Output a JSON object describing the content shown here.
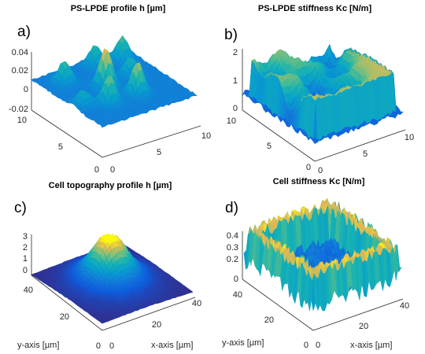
{
  "figure": {
    "panels": [
      {
        "letter": "a)",
        "title": "PS-LPDE profile h [µm]",
        "z_ticks": [
          "0.04",
          "0.02",
          "0",
          "-0.02"
        ],
        "y_ticks": [
          "10",
          "5",
          "0"
        ],
        "x_ticks": [
          "0",
          "5",
          "10"
        ],
        "y_label": "",
        "x_label": ""
      },
      {
        "letter": "b)",
        "title": "PS-LPDE stiffness Kc [N/m]",
        "z_ticks": [
          "2",
          "1",
          "0"
        ],
        "y_ticks": [
          "10",
          "5",
          "0"
        ],
        "x_ticks": [
          "0",
          "5",
          "10"
        ],
        "y_label": "",
        "x_label": ""
      },
      {
        "letter": "c)",
        "title": "Cell topography profile h [µm]",
        "z_ticks": [
          "3",
          "2",
          "1",
          "0"
        ],
        "y_ticks": [
          "40",
          "20",
          "0"
        ],
        "x_ticks": [
          "0",
          "20",
          "40"
        ],
        "y_label": "y-axis [µm]",
        "x_label": "x-axis [µm]"
      },
      {
        "letter": "d)",
        "title": "Cell stiffness Kc [N/m]",
        "z_ticks": [
          "0.4",
          "0.3",
          "0.2",
          "0"
        ],
        "y_ticks": [
          "40",
          "20",
          "0"
        ],
        "x_ticks": [
          "0",
          "20",
          "40"
        ],
        "y_label": "y-axis [µm]",
        "x_label": "x-axis [µm]"
      }
    ]
  },
  "chart_data": [
    {
      "type": "surface",
      "title": "PS-LPDE profile h [µm]",
      "xlim": [
        0,
        10
      ],
      "ylim": [
        0,
        10
      ],
      "zlim": [
        -0.02,
        0.04
      ],
      "z_ticks": [
        -0.02,
        0,
        0.02,
        0.04
      ],
      "colormap": "parula",
      "peaks": [
        {
          "x": 3.0,
          "y": 3.0,
          "h": 0.028
        },
        {
          "x": 6.0,
          "y": 3.0,
          "h": 0.032
        },
        {
          "x": 4.5,
          "y": 5.5,
          "h": 0.04
        },
        {
          "x": 2.0,
          "y": 8.0,
          "h": 0.022
        },
        {
          "x": 7.5,
          "y": 6.0,
          "h": 0.018
        },
        {
          "x": 8.5,
          "y": 8.5,
          "h": 0.024
        },
        {
          "x": 1.0,
          "y": 4.0,
          "h": 0.015
        },
        {
          "x": 6.0,
          "y": 9.0,
          "h": 0.02
        }
      ]
    },
    {
      "type": "surface",
      "title": "PS-LPDE stiffness Kc [N/m]",
      "xlim": [
        0,
        10
      ],
      "ylim": [
        0,
        10
      ],
      "zlim": [
        0,
        2
      ],
      "z_ticks": [
        0,
        1,
        2
      ],
      "colormap": "parula",
      "plateau": 1.7,
      "holes": [
        {
          "x": 3.0,
          "y": 3.0,
          "depth": 1.5
        },
        {
          "x": 6.0,
          "y": 3.0,
          "depth": 1.4
        },
        {
          "x": 4.5,
          "y": 5.5,
          "depth": 1.6
        },
        {
          "x": 2.0,
          "y": 8.0,
          "depth": 1.3
        },
        {
          "x": 7.5,
          "y": 6.0,
          "depth": 1.2
        },
        {
          "x": 8.5,
          "y": 8.5,
          "depth": 1.3
        },
        {
          "x": 1.0,
          "y": 4.0,
          "depth": 1.1
        },
        {
          "x": 6.0,
          "y": 9.0,
          "depth": 1.2
        }
      ]
    },
    {
      "type": "surface",
      "title": "Cell topography profile h [µm]",
      "xlim": [
        0,
        45
      ],
      "ylim": [
        0,
        45
      ],
      "zlim": [
        0,
        3
      ],
      "z_ticks": [
        0,
        1,
        2,
        3
      ],
      "xlabel": "x-axis [µm]",
      "ylabel": "y-axis [µm]",
      "colormap": "parula",
      "peak": {
        "x": 25,
        "y": 27,
        "h": 3.0
      }
    },
    {
      "type": "surface",
      "title": "Cell stiffness Kc [N/m]",
      "xlim": [
        0,
        45
      ],
      "ylim": [
        0,
        45
      ],
      "zlim": [
        0,
        0.5
      ],
      "z_ticks": [
        0,
        0.2,
        0.3,
        0.4
      ],
      "xlabel": "x-axis [µm]",
      "ylabel": "y-axis [µm]",
      "colormap": "parula",
      "rim_level": 0.45,
      "center_level": 0.12
    }
  ]
}
